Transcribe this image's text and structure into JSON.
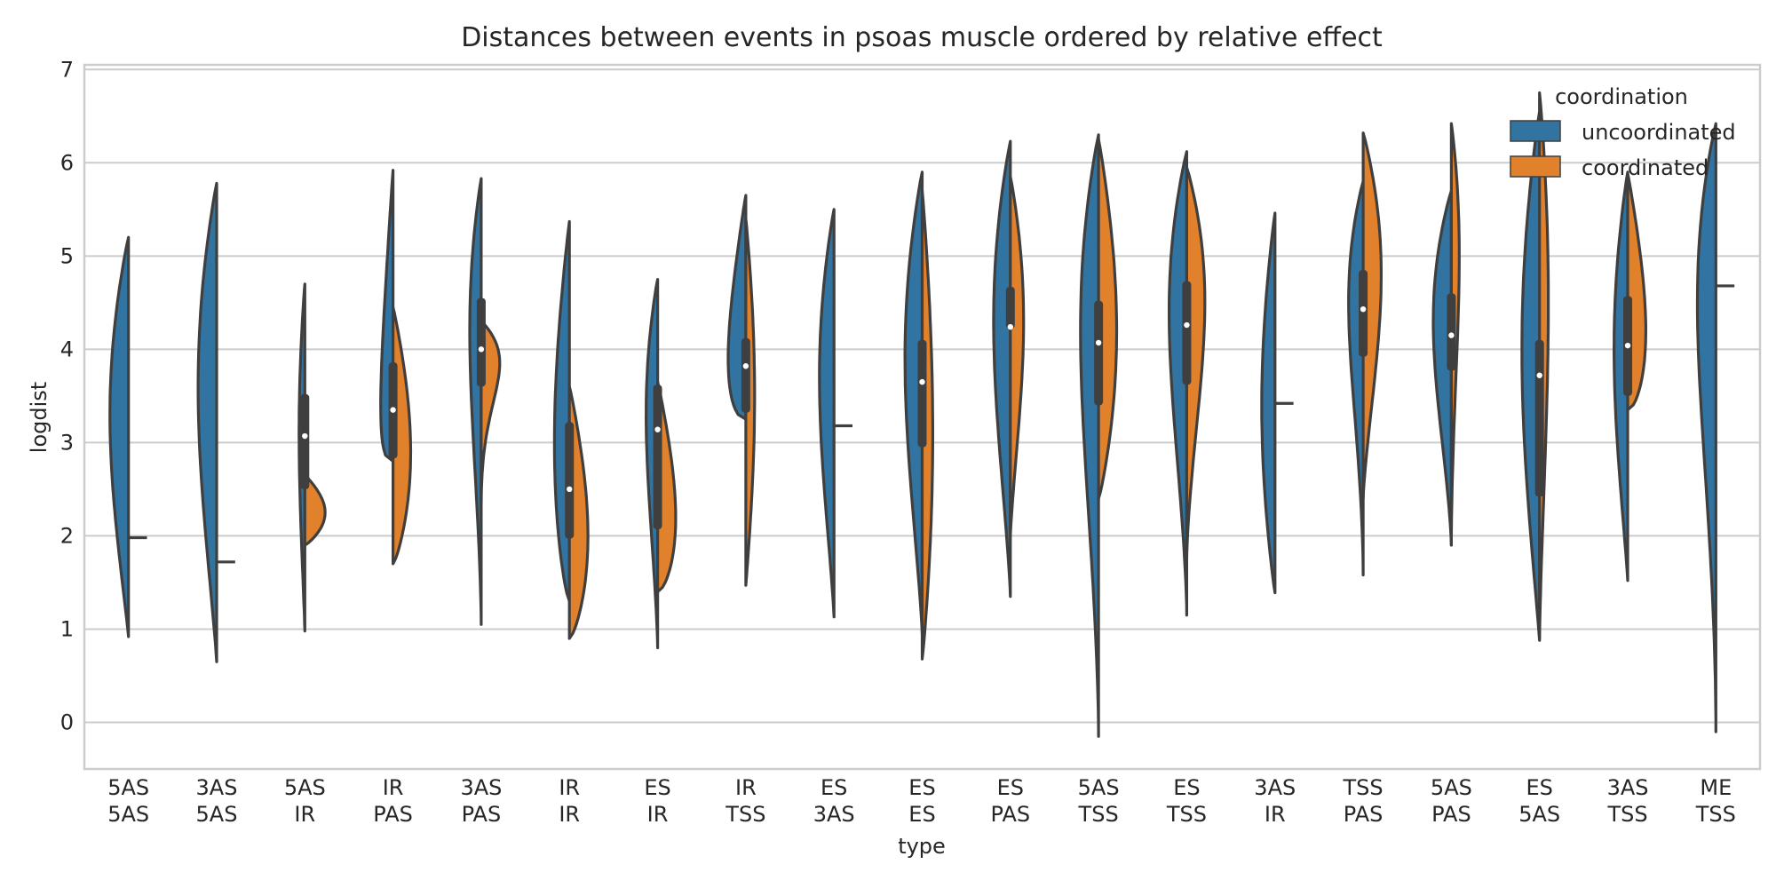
{
  "chart_data": {
    "type": "violin",
    "title": "Distances between events in psoas muscle ordered by relative effect",
    "xlabel": "type",
    "ylabel": "logdist",
    "ylim": [
      -0.5,
      7.05
    ],
    "yticks": [
      0,
      1,
      2,
      3,
      4,
      5,
      6,
      7
    ],
    "grid": true,
    "legend": {
      "title": "coordination",
      "position": "top-right",
      "entries": [
        {
          "name": "uncoordinated",
          "color": "#3274a1"
        },
        {
          "name": "coordinated",
          "color": "#e1812c"
        }
      ]
    },
    "categories": [
      {
        "label": [
          "5AS",
          "5AS"
        ],
        "left": {
          "min": 0.92,
          "max": 5.2,
          "q1": null,
          "med": null,
          "q3": null,
          "mode": 3.3,
          "w": 0.42
        },
        "right": {
          "single": 1.98
        }
      },
      {
        "label": [
          "3AS",
          "5AS"
        ],
        "left": {
          "min": 0.65,
          "max": 5.78,
          "q1": null,
          "med": null,
          "q3": null,
          "mode": 3.6,
          "w": 0.42
        },
        "right": {
          "single": 1.72
        }
      },
      {
        "label": [
          "5AS",
          "IR"
        ],
        "left": {
          "min": 0.98,
          "max": 4.7,
          "q1": 2.5,
          "med": 3.07,
          "q3": 3.52,
          "mode": 3.1,
          "w": 0.13
        },
        "right": {
          "min": 1.9,
          "max": 2.65,
          "mode": 2.25,
          "w": 0.46
        }
      },
      {
        "label": [
          "IR",
          "PAS"
        ],
        "left": {
          "min": 2.8,
          "max": 5.92,
          "q1": 2.83,
          "med": 3.35,
          "q3": 3.86,
          "mode": 3.4,
          "w": 0.28
        },
        "right": {
          "min": 1.7,
          "max": 4.45,
          "mode": 2.9,
          "w": 0.4
        }
      },
      {
        "label": [
          "3AS",
          "PAS"
        ],
        "left": {
          "min": 1.05,
          "max": 5.83,
          "q1": 3.6,
          "med": 4.0,
          "q3": 4.55,
          "mode": 4.2,
          "w": 0.26
        },
        "right": {
          "min": 2.25,
          "max": 4.3,
          "mode": 3.85,
          "w": 0.42
        }
      },
      {
        "label": [
          "IR",
          "IR"
        ],
        "left": {
          "min": 1.3,
          "max": 5.37,
          "q1": 1.97,
          "med": 2.5,
          "q3": 3.22,
          "mode": 3.0,
          "w": 0.34
        },
        "right": {
          "min": 0.9,
          "max": 3.6,
          "mode": 2.0,
          "w": 0.42
        }
      },
      {
        "label": [
          "ES",
          "IR"
        ],
        "left": {
          "min": 0.8,
          "max": 4.75,
          "q1": 2.07,
          "med": 3.14,
          "q3": 3.62,
          "mode": 3.3,
          "w": 0.26
        },
        "right": {
          "min": 1.4,
          "max": 3.65,
          "mode": 2.2,
          "w": 0.41
        }
      },
      {
        "label": [
          "IR",
          "TSS"
        ],
        "left": {
          "min": 3.25,
          "max": 5.65,
          "q1": 3.32,
          "med": 3.82,
          "q3": 4.12,
          "mode": 3.9,
          "w": 0.4
        },
        "right": {
          "min": 1.47,
          "max": 5.4,
          "mode": 3.5,
          "w": 0.2
        }
      },
      {
        "label": [
          "ES",
          "3AS"
        ],
        "left": {
          "min": 1.13,
          "max": 5.5,
          "q1": null,
          "med": null,
          "q3": null,
          "mode": 3.7,
          "w": 0.33
        },
        "right": {
          "single": 3.18
        }
      },
      {
        "label": [
          "ES",
          "ES"
        ],
        "left": {
          "min": 0.95,
          "max": 5.9,
          "q1": 2.95,
          "med": 3.65,
          "q3": 4.1,
          "mode": 3.9,
          "w": 0.39
        },
        "right": {
          "min": 0.68,
          "max": 5.7,
          "mode": 3.1,
          "w": 0.24
        }
      },
      {
        "label": [
          "ES",
          "PAS"
        ],
        "left": {
          "min": 1.35,
          "max": 6.23,
          "q1": 4.22,
          "med": 4.24,
          "q3": 4.67,
          "mode": 4.3,
          "w": 0.38
        },
        "right": {
          "min": 2.0,
          "max": 5.85,
          "mode": 4.3,
          "w": 0.3
        }
      },
      {
        "label": [
          "5AS",
          "TSS"
        ],
        "left": {
          "min": -0.15,
          "max": 6.3,
          "q1": 3.4,
          "med": 4.07,
          "q3": 4.52,
          "mode": 4.2,
          "w": 0.41
        },
        "right": {
          "min": 2.4,
          "max": 6.25,
          "mode": 4.2,
          "w": 0.41
        }
      },
      {
        "label": [
          "ES",
          "TSS"
        ],
        "left": {
          "min": 1.15,
          "max": 6.12,
          "q1": 3.62,
          "med": 4.26,
          "q3": 4.73,
          "mode": 4.4,
          "w": 0.4
        },
        "right": {
          "min": 1.75,
          "max": 5.95,
          "mode": 4.5,
          "w": 0.41
        }
      },
      {
        "label": [
          "3AS",
          "IR"
        ],
        "left": {
          "min": 1.39,
          "max": 5.46,
          "q1": null,
          "med": null,
          "q3": null,
          "mode": 3.4,
          "w": 0.3
        },
        "right": {
          "single": 3.42
        }
      },
      {
        "label": [
          "TSS",
          "PAS"
        ],
        "left": {
          "min": 1.58,
          "max": 5.8,
          "q1": 3.92,
          "med": 4.43,
          "q3": 4.85,
          "mode": 4.5,
          "w": 0.33
        },
        "right": {
          "min": 2.4,
          "max": 6.32,
          "mode": 4.8,
          "w": 0.41
        }
      },
      {
        "label": [
          "5AS",
          "PAS"
        ],
        "left": {
          "min": 1.9,
          "max": 5.7,
          "q1": 3.77,
          "med": 4.15,
          "q3": 4.6,
          "mode": 4.3,
          "w": 0.41
        },
        "right": {
          "min": 1.9,
          "max": 6.42,
          "mode": 5.0,
          "w": 0.18
        }
      },
      {
        "label": [
          "ES",
          "5AS"
        ],
        "left": {
          "min": 0.88,
          "max": 6.55,
          "q1": 2.42,
          "med": 3.72,
          "q3": 4.1,
          "mode": 4.0,
          "w": 0.4
        },
        "right": {
          "min": 0.9,
          "max": 6.75,
          "mode": 4.5,
          "w": 0.2
        }
      },
      {
        "label": [
          "3AS",
          "TSS"
        ],
        "left": {
          "min": 1.52,
          "max": 5.9,
          "q1": 3.5,
          "med": 4.04,
          "q3": 4.57,
          "mode": 4.0,
          "w": 0.31
        },
        "right": {
          "min": 3.35,
          "max": 5.88,
          "mode": 4.2,
          "w": 0.41
        }
      },
      {
        "label": [
          "ME",
          "TSS"
        ],
        "left": {
          "min": -0.1,
          "max": 6.42,
          "q1": null,
          "med": null,
          "q3": null,
          "mode": 4.5,
          "w": 0.42
        },
        "right": {
          "single": 4.68
        }
      }
    ]
  }
}
